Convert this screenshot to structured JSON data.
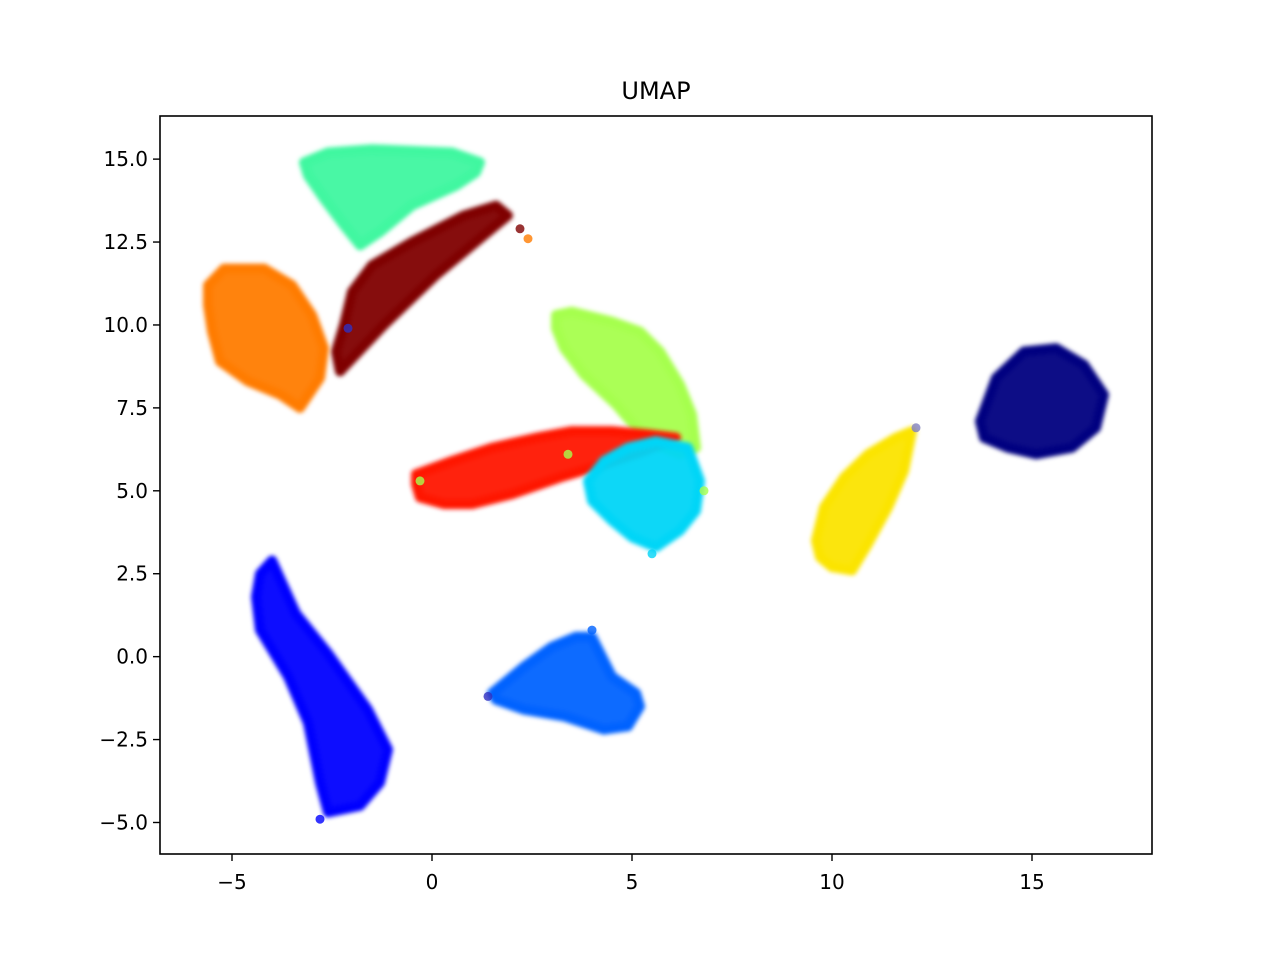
{
  "chart_data": {
    "type": "scatter",
    "title": "UMAP",
    "xlabel": "",
    "ylabel": "",
    "xlim": [
      -6.8,
      18
    ],
    "ylim": [
      -5.95,
      16.3
    ],
    "grid": false,
    "legend": "none",
    "xticks": [
      {
        "value": -5,
        "label": "−5"
      },
      {
        "value": 0,
        "label": "0"
      },
      {
        "value": 5,
        "label": "5"
      },
      {
        "value": 10,
        "label": "10"
      },
      {
        "value": 15,
        "label": "15"
      }
    ],
    "yticks": [
      {
        "value": 15.0,
        "label": "15.0"
      },
      {
        "value": 12.5,
        "label": "12.5"
      },
      {
        "value": 10.0,
        "label": "10.0"
      },
      {
        "value": 7.5,
        "label": "7.5"
      },
      {
        "value": 5.0,
        "label": "5.0"
      },
      {
        "value": 2.5,
        "label": "2.5"
      },
      {
        "value": 0.0,
        "label": "0.0"
      },
      {
        "value": -2.5,
        "label": "−2.5"
      },
      {
        "value": -5.0,
        "label": "−5.0"
      }
    ],
    "series": [
      {
        "color": "#7f0000",
        "outline": [
          [
            -2.3,
            8.6
          ],
          [
            -1.2,
            10.0
          ],
          [
            0.1,
            11.5
          ],
          [
            1.2,
            12.6
          ],
          [
            1.9,
            13.3
          ],
          [
            1.6,
            13.6
          ],
          [
            0.8,
            13.3
          ],
          [
            -0.5,
            12.5
          ],
          [
            -1.5,
            11.8
          ],
          [
            -2.0,
            11.0
          ],
          [
            -2.2,
            10.0
          ],
          [
            -2.4,
            9.2
          ]
        ]
      },
      {
        "color": "#3ff7a0",
        "outline": [
          [
            -3.2,
            14.9
          ],
          [
            -2.6,
            15.2
          ],
          [
            -1.5,
            15.3
          ],
          [
            0.5,
            15.2
          ],
          [
            1.2,
            14.9
          ],
          [
            1.1,
            14.6
          ],
          [
            0.6,
            14.2
          ],
          [
            -0.5,
            13.6
          ],
          [
            -1.3,
            12.8
          ],
          [
            -1.8,
            12.4
          ],
          [
            -2.2,
            13.0
          ],
          [
            -2.7,
            13.8
          ],
          [
            -3.1,
            14.5
          ]
        ]
      },
      {
        "color": "#ff7c00",
        "outline": [
          [
            -5.6,
            11.2
          ],
          [
            -5.2,
            11.7
          ],
          [
            -4.2,
            11.7
          ],
          [
            -3.5,
            11.2
          ],
          [
            -3.0,
            10.3
          ],
          [
            -2.7,
            9.3
          ],
          [
            -2.8,
            8.4
          ],
          [
            -3.3,
            7.5
          ],
          [
            -3.8,
            7.9
          ],
          [
            -4.6,
            8.3
          ],
          [
            -5.3,
            8.9
          ],
          [
            -5.5,
            9.8
          ],
          [
            -5.6,
            10.6
          ]
        ]
      },
      {
        "color": "#a6ff4d",
        "outline": [
          [
            3.1,
            10.3
          ],
          [
            3.5,
            10.4
          ],
          [
            4.5,
            10.1
          ],
          [
            5.2,
            9.8
          ],
          [
            5.7,
            9.2
          ],
          [
            6.2,
            8.2
          ],
          [
            6.5,
            7.3
          ],
          [
            6.6,
            6.3
          ],
          [
            6.2,
            6.1
          ],
          [
            5.6,
            6.4
          ],
          [
            5.1,
            6.9
          ],
          [
            4.6,
            7.6
          ],
          [
            3.8,
            8.5
          ],
          [
            3.3,
            9.3
          ],
          [
            3.1,
            9.9
          ]
        ]
      },
      {
        "color": "#ff1300",
        "outline": [
          [
            -0.4,
            5.5
          ],
          [
            0.5,
            5.9
          ],
          [
            1.5,
            6.3
          ],
          [
            2.6,
            6.6
          ],
          [
            3.5,
            6.8
          ],
          [
            4.5,
            6.8
          ],
          [
            5.4,
            6.7
          ],
          [
            6.1,
            6.6
          ],
          [
            5.3,
            6.2
          ],
          [
            4.3,
            5.8
          ],
          [
            3.2,
            5.4
          ],
          [
            2.0,
            4.9
          ],
          [
            1.0,
            4.6
          ],
          [
            0.3,
            4.6
          ],
          [
            -0.3,
            4.8
          ],
          [
            -0.4,
            5.2
          ]
        ]
      },
      {
        "color": "#00d5f7",
        "outline": [
          [
            3.9,
            5.3
          ],
          [
            4.3,
            5.9
          ],
          [
            4.9,
            6.3
          ],
          [
            5.6,
            6.5
          ],
          [
            6.4,
            6.3
          ],
          [
            6.7,
            5.3
          ],
          [
            6.6,
            4.4
          ],
          [
            6.2,
            3.8
          ],
          [
            5.6,
            3.3
          ],
          [
            5.0,
            3.6
          ],
          [
            4.5,
            4.1
          ],
          [
            4.0,
            4.7
          ]
        ]
      },
      {
        "color": "#0062ff",
        "outline": [
          [
            1.5,
            -1.1
          ],
          [
            2.3,
            -0.3
          ],
          [
            3.0,
            0.3
          ],
          [
            3.6,
            0.6
          ],
          [
            4.0,
            0.6
          ],
          [
            4.5,
            -0.6
          ],
          [
            5.1,
            -1.1
          ],
          [
            5.2,
            -1.5
          ],
          [
            4.9,
            -2.1
          ],
          [
            4.3,
            -2.2
          ],
          [
            3.3,
            -1.8
          ],
          [
            2.3,
            -1.6
          ],
          [
            1.6,
            -1.3
          ]
        ]
      },
      {
        "color": "#0000ff",
        "outline": [
          [
            -4.3,
            2.5
          ],
          [
            -4.0,
            2.9
          ],
          [
            -3.4,
            1.3
          ],
          [
            -2.6,
            0.1
          ],
          [
            -1.6,
            -1.6
          ],
          [
            -1.1,
            -2.8
          ],
          [
            -1.3,
            -3.8
          ],
          [
            -1.8,
            -4.5
          ],
          [
            -2.6,
            -4.7
          ],
          [
            -2.8,
            -3.8
          ],
          [
            -3.1,
            -2.0
          ],
          [
            -3.6,
            -0.6
          ],
          [
            -4.3,
            0.8
          ],
          [
            -4.4,
            1.8
          ]
        ]
      },
      {
        "color": "#fbe400",
        "outline": [
          [
            9.6,
            3.5
          ],
          [
            9.8,
            4.5
          ],
          [
            10.3,
            5.4
          ],
          [
            10.9,
            6.1
          ],
          [
            11.6,
            6.6
          ],
          [
            12.0,
            6.8
          ],
          [
            11.8,
            5.6
          ],
          [
            11.4,
            4.5
          ],
          [
            10.9,
            3.4
          ],
          [
            10.5,
            2.6
          ],
          [
            10.0,
            2.7
          ],
          [
            9.7,
            3.0
          ]
        ]
      },
      {
        "color": "#000080",
        "outline": [
          [
            13.7,
            7.1
          ],
          [
            14.1,
            8.4
          ],
          [
            14.8,
            9.2
          ],
          [
            15.6,
            9.3
          ],
          [
            16.3,
            8.8
          ],
          [
            16.8,
            7.9
          ],
          [
            16.6,
            6.9
          ],
          [
            16.0,
            6.3
          ],
          [
            15.1,
            6.1
          ],
          [
            14.4,
            6.3
          ],
          [
            13.8,
            6.6
          ]
        ]
      }
    ],
    "stray_points": [
      {
        "x": 2.4,
        "y": 12.6,
        "color": "#ff7c00"
      },
      {
        "x": 2.2,
        "y": 12.9,
        "color": "#7f0000"
      },
      {
        "x": 4.0,
        "y": 0.8,
        "color": "#0062ff"
      },
      {
        "x": -2.8,
        "y": -4.9,
        "color": "#0000ff"
      },
      {
        "x": 1.4,
        "y": -1.2,
        "color": "#3030c0"
      },
      {
        "x": 12.1,
        "y": 6.9,
        "color": "#8080c0"
      },
      {
        "x": 6.8,
        "y": 5.0,
        "color": "#a6ff4d"
      },
      {
        "x": -0.3,
        "y": 5.3,
        "color": "#a6ff4d"
      },
      {
        "x": 3.4,
        "y": 6.1,
        "color": "#a6ff4d"
      },
      {
        "x": 5.5,
        "y": 3.1,
        "color": "#00d5f7"
      },
      {
        "x": -2.1,
        "y": 9.9,
        "color": "#3030c0"
      }
    ]
  }
}
